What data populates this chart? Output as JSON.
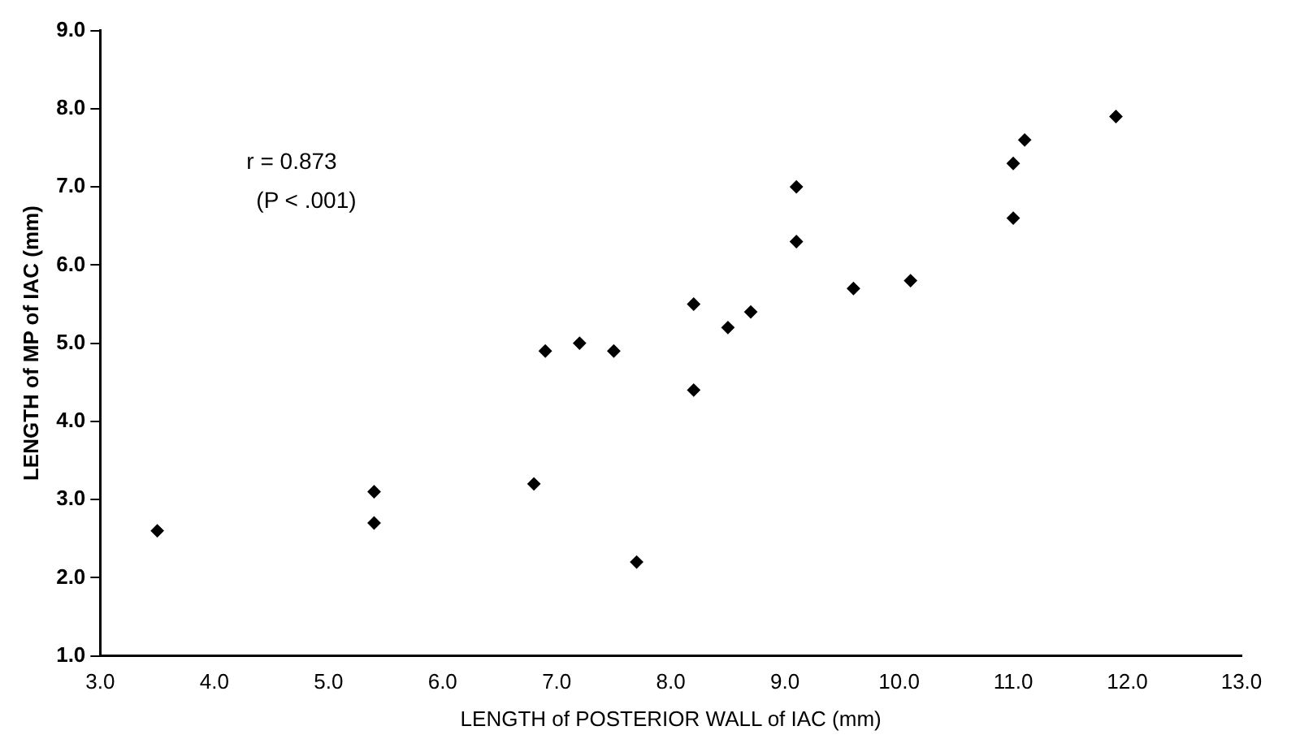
{
  "chart_data": {
    "type": "scatter",
    "xlabel": "LENGTH of POSTERIOR WALL of IAC (mm)",
    "ylabel": "LENGTH of MP of IAC (mm)",
    "annotations": [
      "r = 0.873",
      "(P < .001)"
    ],
    "series": [
      {
        "color": "#000000",
        "x": [
          3.5,
          5.4,
          5.4,
          6.8,
          6.9,
          7.2,
          7.5,
          7.7,
          8.2,
          8.2,
          8.5,
          8.7,
          9.1,
          9.1,
          9.6,
          10.1,
          11.0,
          11.0,
          11.1,
          11.9
        ],
        "values": [
          2.6,
          3.1,
          2.7,
          3.2,
          4.9,
          5.0,
          4.9,
          2.2,
          5.5,
          4.4,
          5.2,
          5.4,
          7.0,
          6.3,
          5.7,
          5.8,
          6.6,
          7.3,
          7.6,
          7.9
        ]
      }
    ],
    "xlim": [
      3,
      13
    ],
    "ylim": [
      1,
      9
    ],
    "xticks": [
      {
        "value": 3,
        "label": "3.0"
      },
      {
        "value": 4,
        "label": "4.0"
      },
      {
        "value": 5,
        "label": "5.0"
      },
      {
        "value": 6,
        "label": "6.0"
      },
      {
        "value": 7,
        "label": "7.0"
      },
      {
        "value": 8,
        "label": "8.0"
      },
      {
        "value": 9,
        "label": "9.0"
      },
      {
        "value": 10,
        "label": "10.0"
      },
      {
        "value": 11,
        "label": "11.0"
      },
      {
        "value": 12,
        "label": "12.0"
      },
      {
        "value": 13,
        "label": "13.0"
      }
    ],
    "yticks": [
      {
        "value": 1,
        "label": "1.0"
      },
      {
        "value": 2,
        "label": "2.0"
      },
      {
        "value": 3,
        "label": "3.0"
      },
      {
        "value": 4,
        "label": "4.0"
      },
      {
        "value": 5,
        "label": "5.0"
      },
      {
        "value": 6,
        "label": "6.0"
      },
      {
        "value": 7,
        "label": "7.0"
      },
      {
        "value": 8,
        "label": "8.0"
      },
      {
        "value": 9,
        "label": "9.0"
      }
    ],
    "grid": false,
    "legend": false,
    "marker": "diamond"
  }
}
